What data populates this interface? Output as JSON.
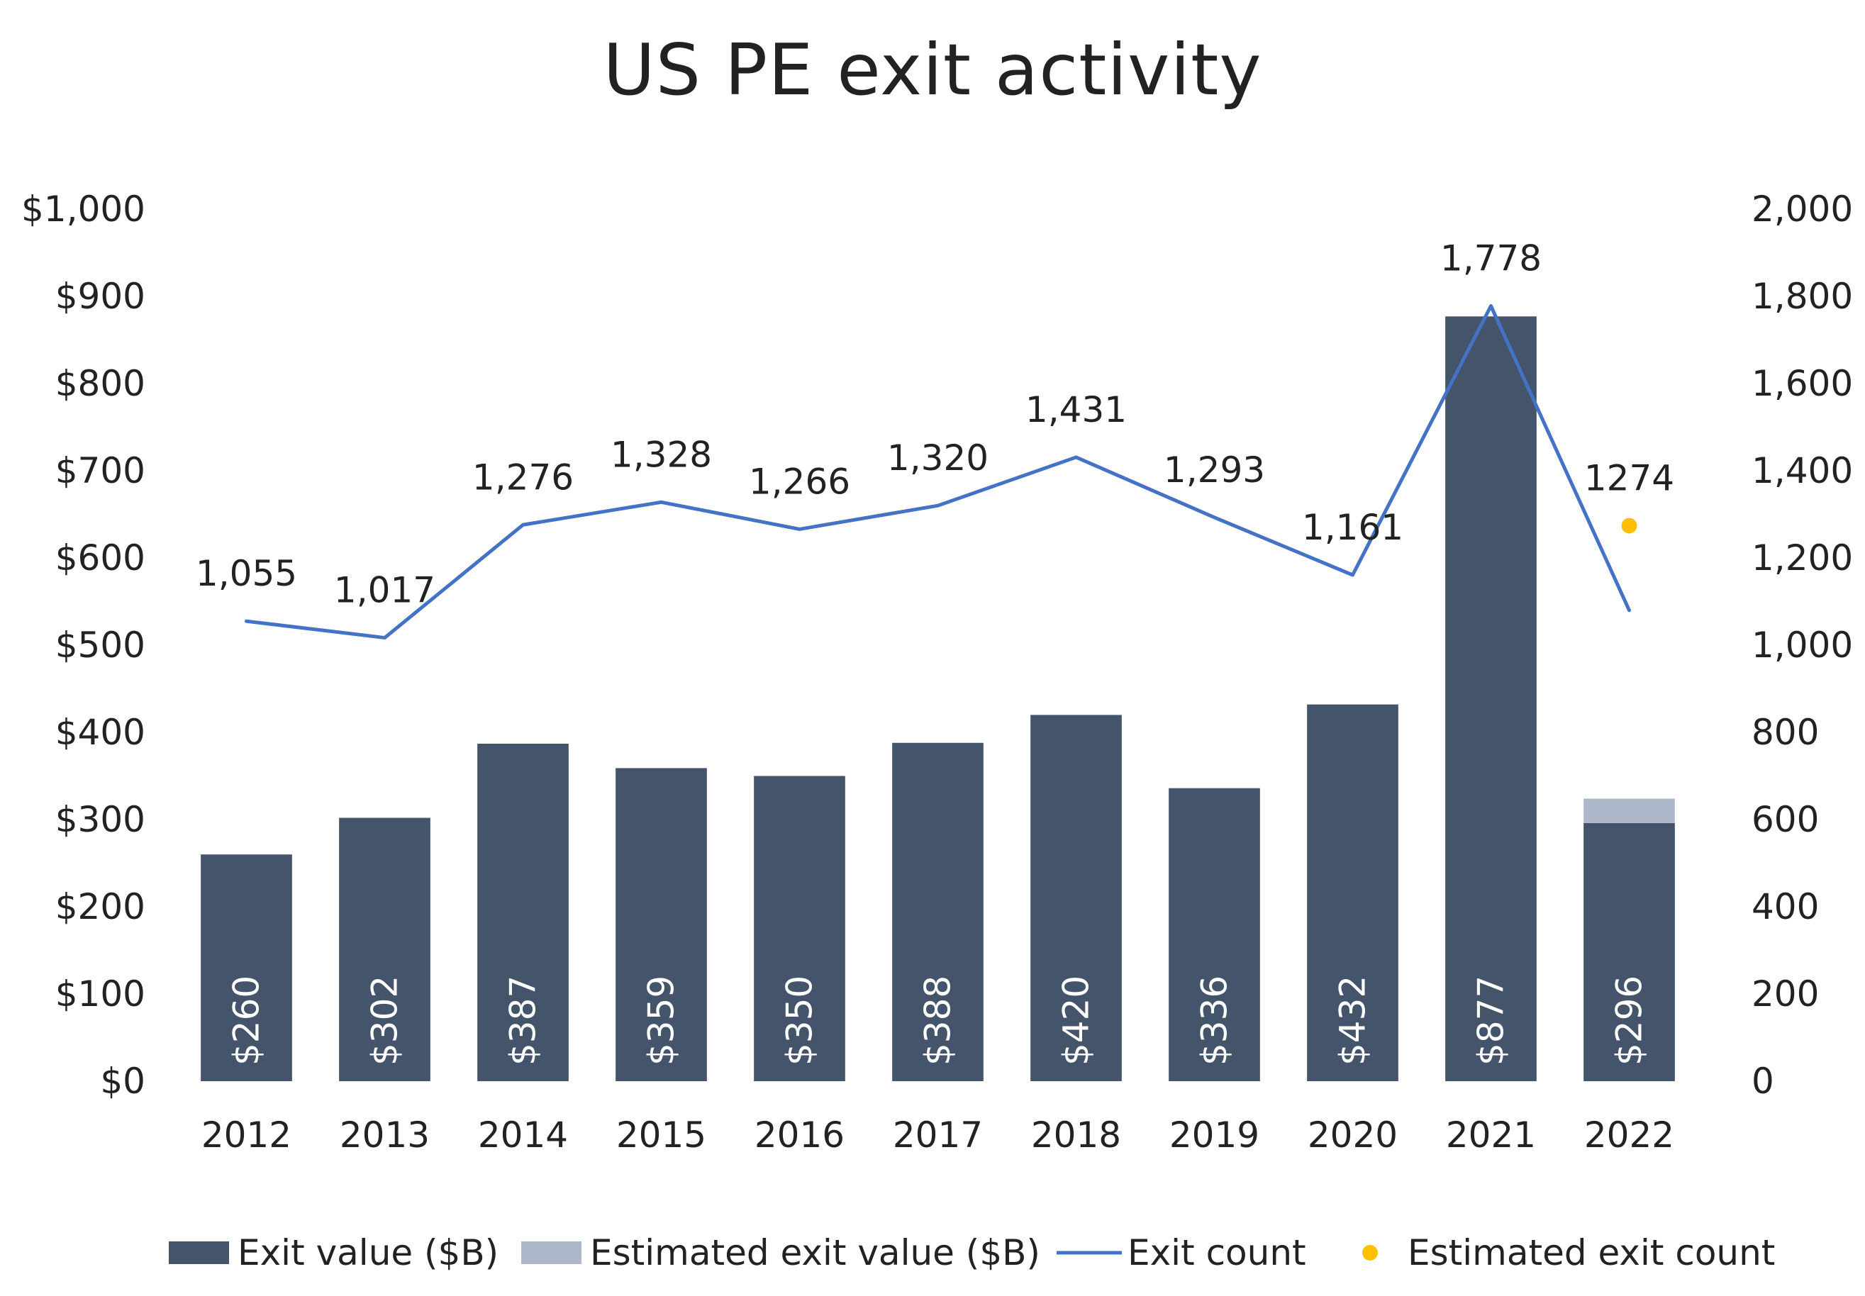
{
  "chart_data": {
    "type": "bar",
    "title": "US PE exit activity",
    "categories": [
      "2012",
      "2013",
      "2014",
      "2015",
      "2016",
      "2017",
      "2018",
      "2019",
      "2020",
      "2021",
      "2022"
    ],
    "series": [
      {
        "name": "Exit value ($B)",
        "kind": "bar",
        "axis": "left",
        "color": "#44546a",
        "values": [
          260,
          302,
          387,
          359,
          350,
          388,
          420,
          336,
          432,
          877,
          296
        ],
        "labels": [
          "$260",
          "$302",
          "$387",
          "$359",
          "$350",
          "$388",
          "$420",
          "$336",
          "$432",
          "$877",
          "$296"
        ]
      },
      {
        "name": "Estimated exit value ($B)",
        "kind": "bar-stacked",
        "axis": "left",
        "color": "#adb9ca",
        "values": [
          null,
          null,
          null,
          null,
          null,
          null,
          null,
          null,
          null,
          null,
          28
        ]
      },
      {
        "name": "Exit count",
        "kind": "line",
        "axis": "right",
        "color": "#4472c4",
        "values": [
          1055,
          1017,
          1276,
          1328,
          1266,
          1320,
          1431,
          1293,
          1161,
          1778,
          1080
        ],
        "labels": [
          "1,055",
          "1,017",
          "1,276",
          "1,328",
          "1,266",
          "1,320",
          "1,431",
          "1,293",
          "1,161",
          "1,778",
          ""
        ]
      },
      {
        "name": "Estimated exit count",
        "kind": "point",
        "axis": "right",
        "color": "#ffc000",
        "values": [
          null,
          null,
          null,
          null,
          null,
          null,
          null,
          null,
          null,
          null,
          1274
        ],
        "labels": [
          "",
          "",
          "",
          "",
          "",
          "",
          "",
          "",
          "",
          "",
          "1274"
        ]
      }
    ],
    "y_left": {
      "range": [
        0,
        1000
      ],
      "ticks": [
        0,
        100,
        200,
        300,
        400,
        500,
        600,
        700,
        800,
        900,
        1000
      ],
      "tick_labels": [
        "$0",
        "$100",
        "$200",
        "$300",
        "$400",
        "$500",
        "$600",
        "$700",
        "$800",
        "$900",
        "$1,000"
      ]
    },
    "y_right": {
      "range": [
        0,
        2000
      ],
      "ticks": [
        0,
        200,
        400,
        600,
        800,
        1000,
        1200,
        1400,
        1600,
        1800,
        2000
      ],
      "tick_labels": [
        "0",
        "200",
        "400",
        "600",
        "800",
        "1,000",
        "1,200",
        "1,400",
        "1,600",
        "1,800",
        "2,000"
      ]
    },
    "grid": false,
    "legend": "bottom",
    "xlabel": "",
    "ylabel": ""
  }
}
